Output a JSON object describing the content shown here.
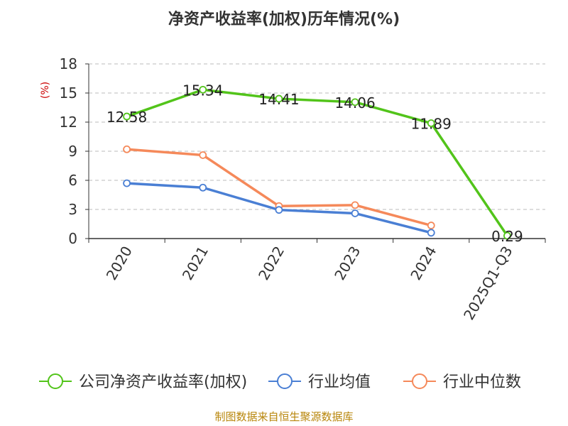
{
  "chart_data": {
    "type": "line",
    "title": "净资产收益率(加权)历年情况(%)",
    "ylabel": "(%)",
    "categories": [
      "2020",
      "2021",
      "2022",
      "2023",
      "2024",
      "2025Q1-Q3"
    ],
    "ylim": [
      0,
      18
    ],
    "yticks": [
      "0",
      "3",
      "6",
      "9",
      "12",
      "15",
      "18"
    ],
    "grid": true,
    "legend_position": "bottom",
    "series": [
      {
        "name": "公司净资产收益率(加权)",
        "color": "#52c41a",
        "values": [
          12.58,
          15.34,
          14.41,
          14.06,
          11.89,
          0.29
        ],
        "labels": [
          "12.58",
          "15.34",
          "14.41",
          "14.06",
          "11.89",
          "0.29"
        ]
      },
      {
        "name": "行业均值",
        "color": "#4a7fd4",
        "values": [
          5.7,
          5.25,
          2.95,
          2.6,
          0.6,
          null
        ]
      },
      {
        "name": "行业中位数",
        "color": "#f5895a",
        "values": [
          9.2,
          8.6,
          3.35,
          3.45,
          1.35,
          null
        ]
      }
    ]
  },
  "source": "制图数据来自恒生聚源数据库"
}
